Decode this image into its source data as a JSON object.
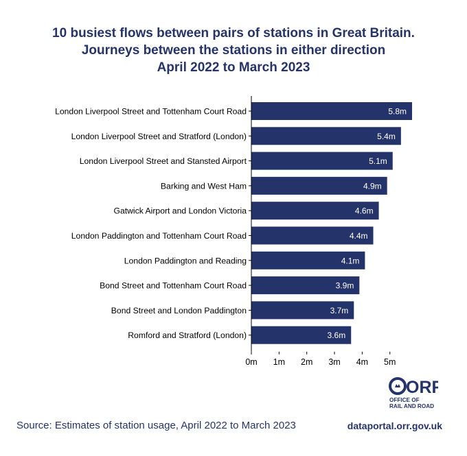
{
  "title_lines": [
    "10 busiest flows between pairs of stations in Great Britain.",
    "Journeys between the stations in either direction",
    "April 2022 to March 2023"
  ],
  "source_text": "Source: Estimates of station usage, April 2022 to March 2023",
  "url_text": "dataportal.orr.gov.uk",
  "logo": {
    "text_main": "ORR",
    "text_line1": "OFFICE OF",
    "text_line2": "RAIL AND ROAD"
  },
  "colors": {
    "bar": "#25336b",
    "title": "#25336b",
    "bar_label": "#ffffff",
    "axis": "#000000"
  },
  "chart_data": {
    "type": "bar",
    "orientation": "horizontal",
    "categories": [
      "London Liverpool Street and Tottenham Court Road",
      "London Liverpool Street and Stratford (London)",
      "London Liverpool Street and Stansted Airport",
      "Barking and West Ham",
      "Gatwick Airport and London Victoria",
      "London Paddington and Tottenham Court Road",
      "London Paddington and Reading",
      "Bond Street and Tottenham Court Road",
      "Bond Street and London Paddington",
      "Romford and Stratford (London)"
    ],
    "values": [
      5.8,
      5.4,
      5.1,
      4.9,
      4.6,
      4.4,
      4.1,
      3.9,
      3.7,
      3.6
    ],
    "data_labels": [
      "5.8m",
      "5.4m",
      "5.1m",
      "4.9m",
      "4.6m",
      "4.4m",
      "4.1m",
      "3.9m",
      "3.7m",
      "3.6m"
    ],
    "xticks": [
      0,
      1,
      2,
      3,
      4,
      5
    ],
    "xtick_labels": [
      "0m",
      "1m",
      "2m",
      "3m",
      "4m",
      "5m"
    ],
    "xlim": [
      0,
      5.8
    ],
    "title": "10 busiest flows between pairs of stations in Great Britain.",
    "xlabel": "",
    "ylabel": "",
    "grid": false,
    "legend": "none"
  }
}
